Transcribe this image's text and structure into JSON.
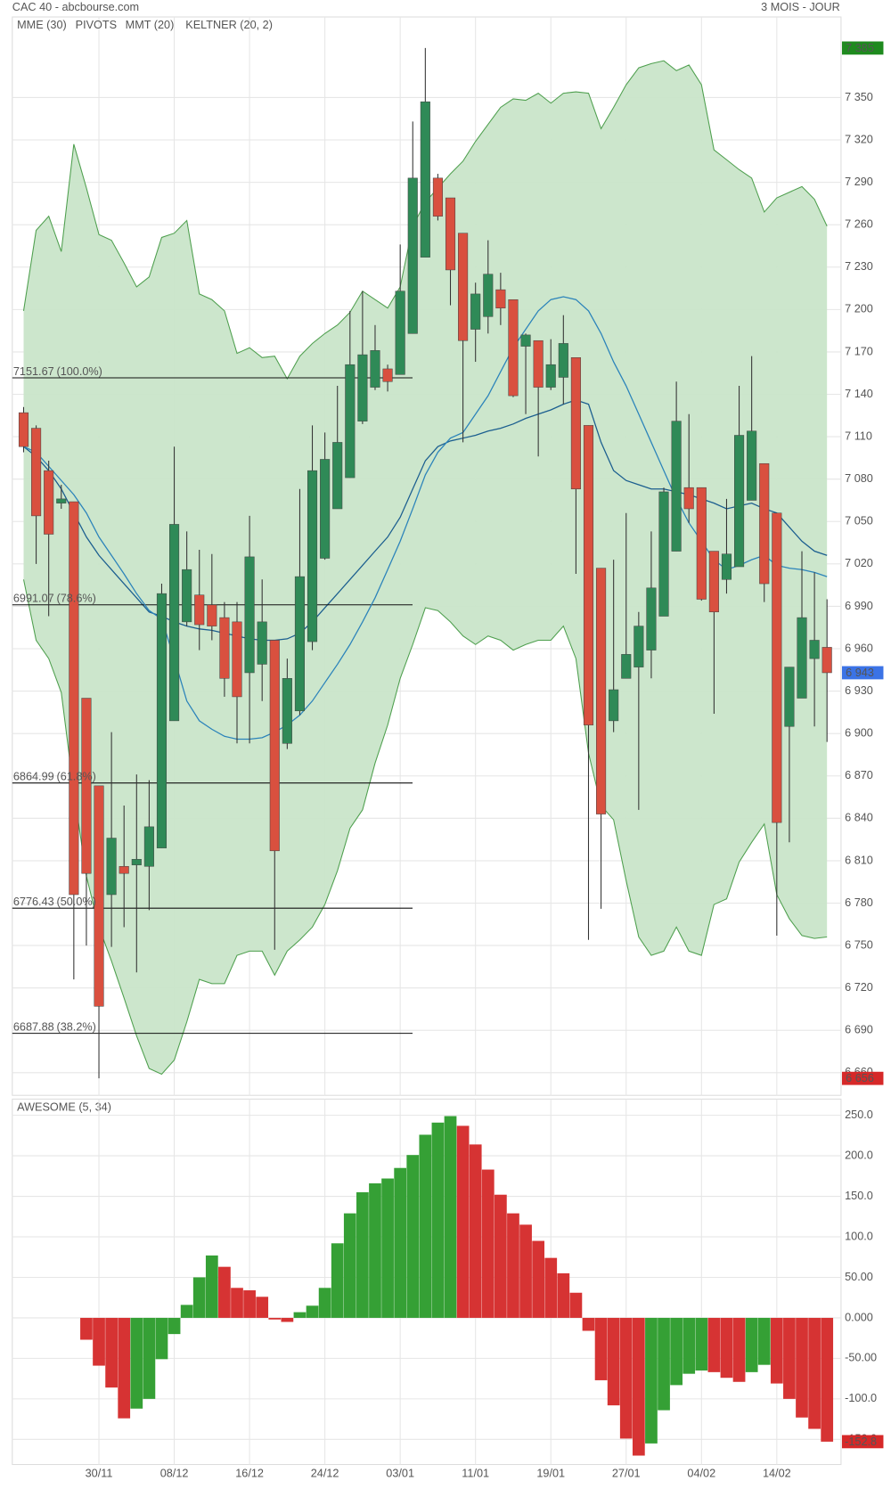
{
  "chart_data": [
    {
      "type": "candlestick",
      "title": "CAC 40 - abcbourse.com",
      "subtitle": "3 MOIS - JOUR",
      "categories": [
        null,
        null,
        null,
        null,
        null,
        null,
        "30/11",
        null,
        null,
        null,
        null,
        null,
        "08/12",
        null,
        null,
        null,
        null,
        null,
        "16/12",
        null,
        null,
        null,
        null,
        null,
        "24/12",
        null,
        null,
        null,
        null,
        null,
        "03/01",
        null,
        null,
        null,
        null,
        null,
        "11/01",
        null,
        null,
        null,
        null,
        null,
        "19/01",
        null,
        null,
        null,
        null,
        null,
        "27/01",
        null,
        null,
        null,
        null,
        null,
        "04/02",
        null,
        null,
        null,
        null,
        null,
        "14/02",
        null,
        null,
        null,
        null
      ],
      "open": [
        7127,
        7116,
        7086,
        7063,
        7064,
        6925,
        6863,
        6786,
        6806,
        6807,
        6806,
        6819,
        6909,
        6979,
        6998,
        6991,
        6982,
        6979,
        6943,
        6949,
        6966,
        6893,
        6916,
        6965,
        7024,
        7059,
        7081,
        7121,
        7145,
        7158,
        7154,
        7183,
        7237,
        7293,
        7279,
        7254,
        7186,
        7195,
        7214,
        7207,
        7174,
        7178,
        7145,
        7152,
        7166,
        7118,
        7017,
        6909,
        6939,
        6947,
        6959,
        6983,
        7029,
        7074,
        7074,
        7029,
        7009,
        7018,
        7065,
        7091,
        7056,
        6905,
        6925,
        6953,
        6961
      ],
      "high": [
        7131,
        7118,
        7093,
        7076,
        7064,
        6925,
        6863,
        6901,
        6849,
        6871,
        6867,
        7006,
        7103,
        7043,
        7030,
        7027,
        6993,
        6993,
        7054,
        7009,
        6966,
        6953,
        7073,
        7118,
        7113,
        7146,
        7199,
        7213,
        7189,
        7161,
        7246,
        7333,
        7385,
        7296,
        7279,
        7254,
        7219,
        7249,
        7226,
        7207,
        7183,
        7178,
        7179,
        7196,
        7166,
        7118,
        7017,
        7023,
        7056,
        6986,
        7043,
        7074,
        7149,
        7126,
        7074,
        7029,
        7066,
        7146,
        7167,
        7091,
        7056,
        6947,
        7029,
        7014,
        6995
      ],
      "low": [
        7099,
        7020,
        6983,
        7059,
        6726,
        6750,
        6656,
        6749,
        6763,
        6731,
        6775,
        6819,
        6909,
        6976,
        6959,
        6966,
        6926,
        6893,
        6893,
        6923,
        6747,
        6889,
        6913,
        6959,
        7023,
        7059,
        7081,
        7119,
        7143,
        7142,
        7154,
        7183,
        7237,
        7263,
        7203,
        7106,
        7163,
        7183,
        7189,
        7138,
        7126,
        7096,
        7143,
        7133,
        7013,
        6754,
        6776,
        6901,
        6939,
        6846,
        6939,
        6983,
        7029,
        7049,
        6994,
        6914,
        6999,
        7018,
        7065,
        6993,
        6757,
        6823,
        6925,
        6905,
        6894
      ],
      "close": [
        7103,
        7054,
        7041,
        7066,
        6786,
        6801,
        6707,
        6826,
        6801,
        6811,
        6834,
        6999,
        7048,
        7016,
        6977,
        6976,
        6939,
        6926,
        7025,
        6979,
        6817,
        6939,
        7011,
        7086,
        7094,
        7106,
        7161,
        7168,
        7171,
        7149,
        7213,
        7293,
        7347,
        7266,
        7228,
        7178,
        7211,
        7225,
        7201,
        7139,
        7182,
        7145,
        7161,
        7176,
        7073,
        6906,
        6843,
        6931,
        6956,
        6976,
        7003,
        7071,
        7121,
        7059,
        6995,
        6986,
        7027,
        7111,
        7114,
        7006,
        6837,
        6947,
        6982,
        6966,
        6943
      ],
      "up_color": "#2f8a57",
      "down_color": "#d9503f",
      "overlays": [
        {
          "name": "MME (30)",
          "color": "#1b5e8f",
          "values": [
            7103,
            7096,
            7086,
            7073,
            7056,
            7039,
            7026,
            7016,
            7006,
            6996,
            6986,
            6983,
            6979,
            6976,
            6974,
            6973,
            6971,
            6969,
            6967,
            6966,
            6966,
            6967,
            6971,
            6979,
            6989,
            6999,
            7009,
            7019,
            7029,
            7039,
            7053,
            7073,
            7093,
            7103,
            7107,
            7109,
            7111,
            7114,
            7116,
            7119,
            7123,
            7126,
            7129,
            7133,
            7136,
            7133,
            7106,
            7086,
            7079,
            7076,
            7073,
            7073,
            7071,
            7069,
            7066,
            7063,
            7059,
            7061,
            7063,
            7059,
            7056,
            7046,
            7036,
            7029,
            7026
          ]
        },
        {
          "name": "PIVOTS",
          "color": "#666666",
          "levels": [
            {
              "value": 7151.67,
              "label": "(100.0%)"
            },
            {
              "value": 6991.07,
              "label": "(78.6%)"
            },
            {
              "value": 6864.99,
              "label": "(61.8%)"
            },
            {
              "value": 6776.43,
              "label": "(50.0%)"
            },
            {
              "value": 6687.88,
              "label": "(38.2%)"
            }
          ]
        },
        {
          "name": "MMT (20)",
          "color": "#2b83ba",
          "values": [
            7103,
            7099,
            7089,
            7079,
            7069,
            7056,
            7039,
            7026,
            7013,
            6999,
            6987,
            6981,
            6953,
            6923,
            6909,
            6903,
            6898,
            6896,
            6896,
            6897,
            6901,
            6906,
            6913,
            6923,
            6936,
            6949,
            6963,
            6979,
            6996,
            7016,
            7036,
            7059,
            7083,
            7099,
            7109,
            7113,
            7126,
            7139,
            7156,
            7173,
            7186,
            7199,
            7207,
            7209,
            7207,
            7199,
            7183,
            7163,
            7146,
            7126,
            7106,
            7086,
            7066,
            7049,
            7036,
            7023,
            7016,
            7019,
            7023,
            7026,
            7019,
            7017,
            7016,
            7014,
            7011
          ]
        },
        {
          "name": "KELTNER (20, 2)",
          "color": "#4e9f4e",
          "fill": "#c9e5c9",
          "upper": [
            7199,
            7256,
            7266,
            7241,
            7317,
            7286,
            7253,
            7249,
            7233,
            7216,
            7223,
            7251,
            7254,
            7263,
            7211,
            7207,
            7199,
            7169,
            7173,
            7166,
            7167,
            7151,
            7167,
            7176,
            7183,
            7189,
            7198,
            7213,
            7207,
            7201,
            7216,
            7259,
            7276,
            7286,
            7296,
            7305,
            7319,
            7331,
            7343,
            7349,
            7348,
            7353,
            7346,
            7353,
            7354,
            7353,
            7328,
            7343,
            7359,
            7371,
            7374,
            7376,
            7369,
            7373,
            7359,
            7313,
            7306,
            7299,
            7293,
            7269,
            7279,
            7283,
            7287,
            7278,
            7259
          ],
          "lower": [
            7009,
            6966,
            6953,
            6929,
            6859,
            6799,
            6763,
            6739,
            6713,
            6686,
            6663,
            6659,
            6669,
            6696,
            6726,
            6723,
            6723,
            6743,
            6746,
            6746,
            6729,
            6746,
            6754,
            6763,
            6779,
            6803,
            6833,
            6846,
            6879,
            6906,
            6939,
            6963,
            6989,
            6987,
            6979,
            6969,
            6963,
            6969,
            6966,
            6959,
            6963,
            6966,
            6966,
            6976,
            6953,
            6886,
            6849,
            6839,
            6796,
            6756,
            6743,
            6746,
            6763,
            6746,
            6743,
            6779,
            6783,
            6809,
            6823,
            6836,
            6786,
            6769,
            6757,
            6755,
            6756
          ]
        }
      ],
      "price_labels": [
        {
          "value": 7385,
          "label": "7 385",
          "color": "#1e8a1e"
        },
        {
          "value": 6943,
          "label": "6 943",
          "color": "#3b73e6"
        },
        {
          "value": 6656,
          "label": "6 656",
          "color": "#d62828"
        }
      ],
      "ylim": [
        6644,
        7407
      ],
      "yticks": [
        {
          "value": 7350,
          "label": "7 350"
        },
        {
          "value": 7320,
          "label": "7 320"
        },
        {
          "value": 7290,
          "label": "7 290"
        },
        {
          "value": 7260,
          "label": "7 260"
        },
        {
          "value": 7230,
          "label": "7 230"
        },
        {
          "value": 7200,
          "label": "7 200"
        },
        {
          "value": 7170,
          "label": "7 170"
        },
        {
          "value": 7140,
          "label": "7 140"
        },
        {
          "value": 7110,
          "label": "7 110"
        },
        {
          "value": 7080,
          "label": "7 080"
        },
        {
          "value": 7050,
          "label": "7 050"
        },
        {
          "value": 7020,
          "label": "7 020"
        },
        {
          "value": 6990,
          "label": "6 990"
        },
        {
          "value": 6960,
          "label": "6 960"
        },
        {
          "value": 6930,
          "label": "6 930"
        },
        {
          "value": 6900,
          "label": "6 900"
        },
        {
          "value": 6870,
          "label": "6 870"
        },
        {
          "value": 6840,
          "label": "6 840"
        },
        {
          "value": 6810,
          "label": "6 810"
        },
        {
          "value": 6780,
          "label": "6 780"
        },
        {
          "value": 6750,
          "label": "6 750"
        },
        {
          "value": 6720,
          "label": "6 720"
        },
        {
          "value": 6690,
          "label": "6 690"
        },
        {
          "value": 6660,
          "label": "6 660"
        }
      ],
      "grid": true
    },
    {
      "type": "bar",
      "title": "AWESOME (5, 34)",
      "title_color": "#3a9a3a",
      "values": [
        null,
        null,
        null,
        null,
        null,
        -27,
        -59,
        -86,
        -124,
        -112,
        -100,
        -51,
        -20,
        16,
        50,
        77,
        63,
        37,
        34,
        26,
        -2,
        -5,
        7,
        15,
        37,
        92,
        129,
        155,
        166,
        172,
        185,
        201,
        226,
        241,
        249,
        237,
        214,
        183,
        152,
        129,
        115,
        95,
        74,
        55,
        31,
        -16,
        -77,
        -108,
        -149,
        -170,
        -155,
        -114,
        -83,
        -69,
        -65,
        -67,
        -74,
        -79,
        -67,
        -58,
        -81,
        -100,
        -123,
        -137,
        -152.8
      ],
      "up_color": "#35a035",
      "down_color": "#d63333",
      "current_value": -152.8,
      "current_color": "#d62828",
      "ylim": [
        -181,
        270
      ],
      "yticks": [
        {
          "value": 250,
          "label": "250.0"
        },
        {
          "value": 200,
          "label": "200.0"
        },
        {
          "value": 150,
          "label": "150.0"
        },
        {
          "value": 100,
          "label": "100.0"
        },
        {
          "value": 50,
          "label": "50.00"
        },
        {
          "value": 0,
          "label": "0.000"
        },
        {
          "value": -50,
          "label": "-50.00"
        },
        {
          "value": -100,
          "label": "-100.0"
        },
        {
          "value": -150,
          "label": "-150.0"
        }
      ],
      "grid": true
    }
  ]
}
